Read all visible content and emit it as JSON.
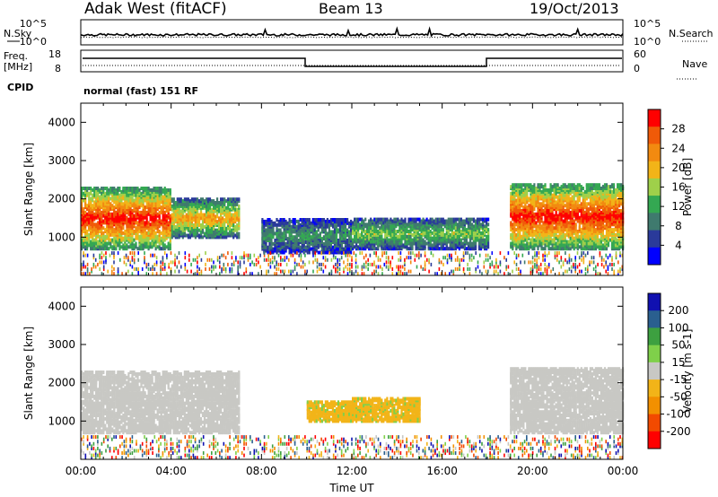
{
  "header": {
    "station": "Adak West (fitACF)",
    "beam": "Beam 13",
    "date": "19/Oct/2013"
  },
  "labels": {
    "nsky": "N.Sky",
    "nsearch": "N.Search",
    "freq": "Freq.",
    "freq_unit": "[MHz]",
    "nave": "Nave",
    "cpid": "CPID",
    "cpid_value": "normal (fast) 151 RF",
    "nsky_ticks": [
      "10^5",
      "10^0"
    ],
    "nsearch_ticks": [
      "10^5",
      "10^0"
    ],
    "freq_ticks": [
      "18",
      "8"
    ],
    "nave_ticks": [
      "60",
      "0"
    ]
  },
  "colors": {
    "power_scale": [
      "#0000ff",
      "#2a3a9a",
      "#3f7a6e",
      "#34a852",
      "#9fd04a",
      "#f2b418",
      "#f28a10",
      "#f05a08",
      "#ff0000"
    ],
    "velocity_scale": [
      "#ff0000",
      "#f24a00",
      "#f29000",
      "#f2b418",
      "#c8c8c4",
      "#7fd04a",
      "#3da040",
      "#2a5f8f",
      "#1010b0"
    ],
    "ground_scatter": "#c8c8c4"
  },
  "chart_data": [
    {
      "type": "heatmap",
      "panel": "power",
      "xlabel": "",
      "ylabel": "Slant Range [km]",
      "ylim": [
        0,
        4500
      ],
      "y_ticks": [
        "1000",
        "2000",
        "3000",
        "4000"
      ],
      "colorbar": {
        "label": "Power [dB]",
        "ticks": [
          "4",
          "8",
          "12",
          "16",
          "20",
          "24",
          "28"
        ],
        "range": [
          0,
          32
        ]
      },
      "regions": [
        {
          "t_start": 0,
          "t_end": 4,
          "range_low": 700,
          "range_high": 2300,
          "level_db": 28
        },
        {
          "t_start": 4,
          "t_end": 7,
          "range_low": 1000,
          "range_high": 2000,
          "level_db": 20
        },
        {
          "t_start": 8,
          "t_end": 12,
          "range_low": 600,
          "range_high": 1500,
          "level_db": 10
        },
        {
          "t_start": 12,
          "t_end": 18,
          "range_low": 700,
          "range_high": 1500,
          "level_db": 14
        },
        {
          "t_start": 19,
          "t_end": 24,
          "range_low": 700,
          "range_high": 2400,
          "level_db": 28
        }
      ]
    },
    {
      "type": "heatmap",
      "panel": "velocity",
      "xlabel": "Time UT",
      "ylabel": "Slant Range [km]",
      "ylim": [
        0,
        4500
      ],
      "x_ticks": [
        "00:00",
        "04:00",
        "08:00",
        "12:00",
        "16:00",
        "20:00",
        "00:00"
      ],
      "y_ticks": [
        "1000",
        "2000",
        "3000",
        "4000"
      ],
      "colorbar": {
        "label": "Velocity [m s-1]",
        "ticks": [
          "200",
          "100",
          "50",
          "15",
          "-15",
          "-50",
          "-100",
          "-200"
        ],
        "range": [
          -250,
          250
        ]
      },
      "regions": [
        {
          "t_start": 0,
          "t_end": 7,
          "range_low": 700,
          "range_high": 2300,
          "velocity": 0
        },
        {
          "t_start": 10,
          "t_end": 12,
          "range_low": 1000,
          "range_high": 1500,
          "velocity": -40
        },
        {
          "t_start": 12,
          "t_end": 15,
          "range_low": 1000,
          "range_high": 1600,
          "velocity": -30
        },
        {
          "t_start": 19,
          "t_end": 24,
          "range_low": 700,
          "range_high": 2400,
          "velocity": 0
        }
      ]
    }
  ]
}
